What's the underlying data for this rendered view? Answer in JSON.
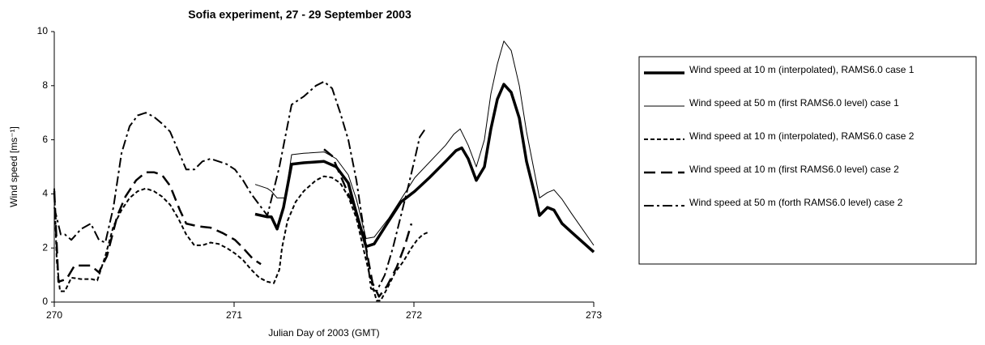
{
  "chart_data": {
    "type": "line",
    "title": "Sofia experiment, 27 - 29 September 2003",
    "xlabel": "Julian Day of 2003 (GMT)",
    "ylabel": "Wind speed [ms⁻¹]",
    "xlim": [
      270,
      273
    ],
    "xticks": [
      270,
      271,
      272,
      273
    ],
    "ylim": [
      0,
      10
    ],
    "yticks": [
      0,
      2,
      4,
      6,
      8,
      10
    ],
    "grid": false,
    "legend": "right",
    "series": [
      {
        "name": "Wind speed at 10 m (interpolated), RAMS6.0 case 1",
        "color": "#000000",
        "style": "thick-solid",
        "x": [
          271.117,
          271.185,
          271.207,
          271.239,
          271.275,
          271.32,
          271.387,
          271.5,
          271.568,
          271.635,
          271.671,
          271.734,
          271.779,
          271.86,
          271.928,
          272.005,
          272.086,
          272.176,
          272.234,
          272.266,
          272.302,
          272.347,
          272.392,
          272.428,
          272.464,
          272.5,
          272.541,
          272.586,
          272.626,
          272.671,
          272.698,
          272.743,
          272.779,
          272.824,
          272.874,
          273.0
        ],
        "values": [
          3.25,
          3.15,
          3.15,
          2.7,
          3.5,
          5.1,
          5.15,
          5.2,
          5.0,
          4.4,
          3.5,
          2.05,
          2.15,
          3.0,
          3.7,
          4.1,
          4.6,
          5.2,
          5.6,
          5.7,
          5.3,
          4.5,
          5.0,
          6.4,
          7.5,
          8.05,
          7.75,
          6.8,
          5.2,
          4.0,
          3.2,
          3.5,
          3.4,
          2.9,
          2.6,
          1.85
        ]
      },
      {
        "name": "Wind speed at 50 m (first RAMS6.0 level) case 1",
        "color": "#000000",
        "style": "thin-solid",
        "x": [
          271.117,
          271.185,
          271.207,
          271.239,
          271.284,
          271.32,
          271.387,
          271.5,
          271.568,
          271.635,
          271.68,
          271.734,
          271.779,
          271.86,
          272.005,
          272.176,
          272.221,
          272.257,
          272.302,
          272.347,
          272.392,
          272.428,
          272.464,
          272.5,
          272.541,
          272.586,
          272.626,
          272.698,
          272.743,
          272.779,
          272.824,
          272.874,
          273.0
        ],
        "values": [
          4.35,
          4.2,
          4.1,
          3.85,
          3.85,
          5.45,
          5.5,
          5.55,
          5.3,
          4.7,
          3.8,
          2.35,
          2.4,
          3.1,
          4.6,
          5.8,
          6.2,
          6.4,
          5.8,
          5.0,
          6.0,
          7.7,
          8.8,
          9.65,
          9.3,
          8.0,
          6.3,
          3.85,
          4.05,
          4.15,
          3.8,
          3.3,
          2.1
        ]
      },
      {
        "name": "Wind speed at 10 m (interpolated), RAMS6.0 case 2",
        "color": "#000000",
        "style": "dashed",
        "x": [
          270.0,
          270.014,
          270.032,
          270.059,
          270.095,
          270.149,
          270.207,
          270.239,
          270.284,
          270.329,
          270.374,
          270.419,
          270.464,
          270.509,
          270.554,
          270.599,
          270.644,
          270.689,
          270.734,
          270.779,
          270.824,
          270.869,
          270.914,
          270.959,
          271.005,
          271.05,
          271.095,
          271.14,
          271.185,
          271.221,
          271.252,
          271.266,
          271.297,
          271.342,
          271.387,
          271.455,
          271.5,
          271.545,
          271.59,
          271.635,
          271.68,
          271.725,
          271.761,
          271.793,
          271.815,
          271.851,
          271.896,
          271.941,
          271.986,
          272.018,
          272.05,
          272.086
        ],
        "values": [
          4.2,
          1.5,
          0.4,
          0.4,
          0.9,
          0.85,
          0.85,
          0.8,
          1.7,
          2.8,
          3.4,
          3.85,
          4.1,
          4.2,
          4.1,
          3.9,
          3.6,
          3.1,
          2.5,
          2.1,
          2.1,
          2.2,
          2.15,
          2.0,
          1.8,
          1.55,
          1.2,
          0.9,
          0.75,
          0.7,
          1.2,
          2.0,
          3.0,
          3.7,
          4.1,
          4.5,
          4.65,
          4.6,
          4.4,
          3.9,
          3.1,
          1.8,
          0.8,
          0.05,
          0.05,
          0.5,
          1.1,
          1.5,
          2.0,
          2.3,
          2.5,
          2.6
        ]
      },
      {
        "name": "Wind speed at 10 m (first RAMS6.0 level) case 2",
        "color": "#000000",
        "style": "long-dash",
        "x": [
          270.0,
          270.023,
          270.068,
          270.113,
          270.203,
          270.248,
          270.293,
          270.351,
          270.396,
          270.455,
          270.509,
          270.554,
          270.599,
          270.644,
          270.698,
          270.734,
          270.802,
          270.869,
          270.937,
          271.005,
          271.05,
          271.104,
          271.149,
          null,
          271.5,
          271.545,
          271.68,
          271.734,
          271.77,
          271.806,
          271.851,
          271.905,
          271.95,
          271.986,
          null,
          272.077
        ],
        "values": [
          4.1,
          0.75,
          0.85,
          1.35,
          1.35,
          1.1,
          1.7,
          3.2,
          3.9,
          4.5,
          4.8,
          4.8,
          4.7,
          4.3,
          3.4,
          2.9,
          2.8,
          2.75,
          2.55,
          2.3,
          2.0,
          1.6,
          1.4,
          null,
          5.65,
          5.4,
          3.3,
          2.0,
          0.7,
          0.2,
          0.6,
          1.3,
          2.1,
          2.9,
          null,
          3.5
        ]
      },
      {
        "name": "Wind speed at 50 m (forth RAMS6.0 level) case 2",
        "color": "#000000",
        "style": "dash-dot",
        "x": [
          270.0,
          270.036,
          270.059,
          270.095,
          270.149,
          270.203,
          270.248,
          270.284,
          270.329,
          270.374,
          270.419,
          270.464,
          270.509,
          270.554,
          270.599,
          270.644,
          270.689,
          270.734,
          270.779,
          270.824,
          270.869,
          270.914,
          270.959,
          271.005,
          271.05,
          271.095,
          271.14,
          271.185,
          271.252,
          271.32,
          271.387,
          271.455,
          271.5,
          271.545,
          271.59,
          271.635,
          271.68,
          271.725,
          271.761,
          271.793,
          271.838,
          271.883,
          271.928,
          271.973,
          272.005,
          272.032,
          272.063
        ],
        "values": [
          3.5,
          2.5,
          2.5,
          2.3,
          2.7,
          2.9,
          2.3,
          2.2,
          3.5,
          5.5,
          6.5,
          6.9,
          7.0,
          6.85,
          6.6,
          6.3,
          5.6,
          4.9,
          4.9,
          5.2,
          5.3,
          5.2,
          5.1,
          4.9,
          4.5,
          4.0,
          3.6,
          3.2,
          5.0,
          7.3,
          7.6,
          8.0,
          8.15,
          7.9,
          7.0,
          6.0,
          4.5,
          2.5,
          0.5,
          0.4,
          1.0,
          2.0,
          3.2,
          4.4,
          5.3,
          6.1,
          6.4
        ]
      }
    ]
  }
}
